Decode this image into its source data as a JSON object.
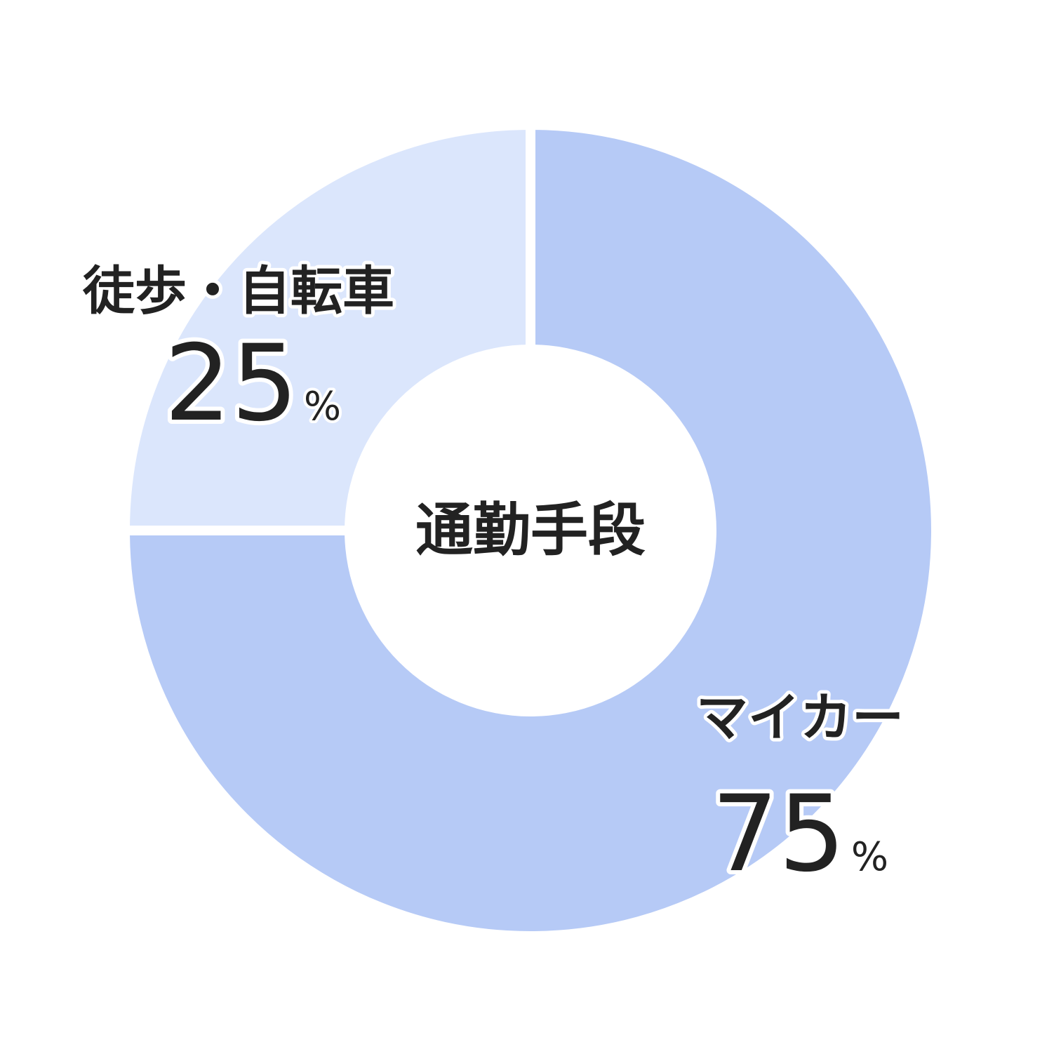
{
  "chart_data": {
    "type": "pie",
    "title": "通勤手段",
    "unit": "%",
    "categories": [
      "マイカー",
      "徒歩・自転車"
    ],
    "values": [
      75,
      25
    ],
    "colors": [
      "#b6caf6",
      "#dbe6fc"
    ],
    "hole": "donut",
    "start": "top",
    "direction": "clockwise",
    "legend": "none"
  }
}
